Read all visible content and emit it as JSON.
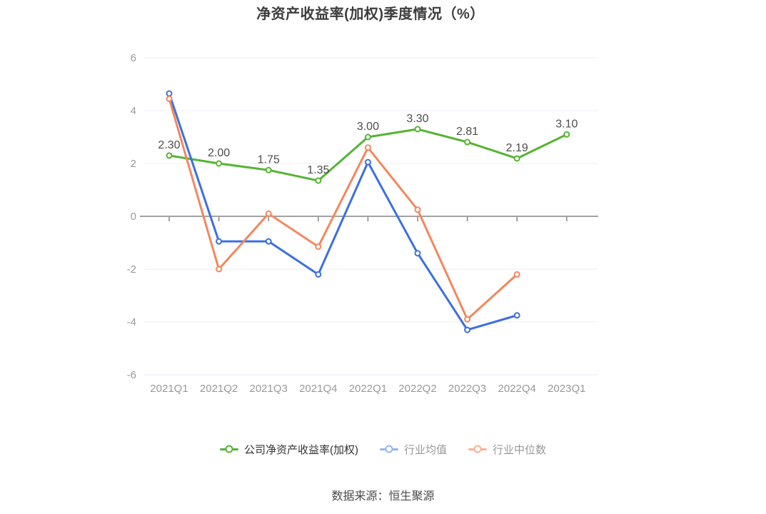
{
  "title": "净资产收益率(加权)季度情况（%）",
  "footer": "数据来源：恒生聚源",
  "colors": {
    "background": "#ffffff",
    "grid": "#e8eef7",
    "zero_axis": "#848484",
    "axis_label": "#999999",
    "data_label": "#4d4d4d",
    "title": "#3d3d3d",
    "footer": "#4a4a4a"
  },
  "chart_data": {
    "type": "line",
    "title": "净资产收益率(加权)季度情况（%）",
    "categories": [
      "2021Q1",
      "2021Q2",
      "2021Q3",
      "2021Q4",
      "2022Q1",
      "2022Q2",
      "2022Q3",
      "2022Q4",
      "2023Q1"
    ],
    "series": [
      {
        "key": "company-roe",
        "name": "公司净资产收益率(加权)",
        "color": "#54b532",
        "values": [
          2.3,
          2.0,
          1.75,
          1.35,
          3.0,
          3.3,
          2.81,
          2.19,
          3.1
        ],
        "labels": [
          "2.30",
          "2.00",
          "1.75",
          "1.35",
          "3.00",
          "3.30",
          "2.81",
          "2.19",
          "3.10"
        ],
        "show_labels": true
      },
      {
        "key": "industry-mean",
        "name": "行业均值",
        "color": "#3d6fe1",
        "values": [
          4.65,
          -0.95,
          -0.95,
          -2.2,
          2.05,
          -1.4,
          -4.3,
          -3.75,
          null
        ],
        "show_labels": false
      },
      {
        "key": "industry-median",
        "name": "行业中位数",
        "color": "#f4875e",
        "values": [
          4.45,
          -2.0,
          0.1,
          -1.15,
          2.6,
          0.25,
          -3.9,
          -2.2,
          null
        ],
        "show_labels": false
      }
    ],
    "ylim": [
      -6,
      6
    ],
    "yticks": [
      6,
      4,
      2,
      0,
      -2,
      -4,
      -6
    ],
    "grid": true,
    "legend_position": "bottom"
  },
  "legend": {
    "items": [
      {
        "label": "公司净资产收益率(加权)",
        "marker_color": "#54b532",
        "label_color": "#333333"
      },
      {
        "label": "行业均值",
        "marker_color": "#93b6f2",
        "label_color": "#999999"
      },
      {
        "label": "行业中位数",
        "marker_color": "#f8b291",
        "label_color": "#999999"
      }
    ]
  }
}
